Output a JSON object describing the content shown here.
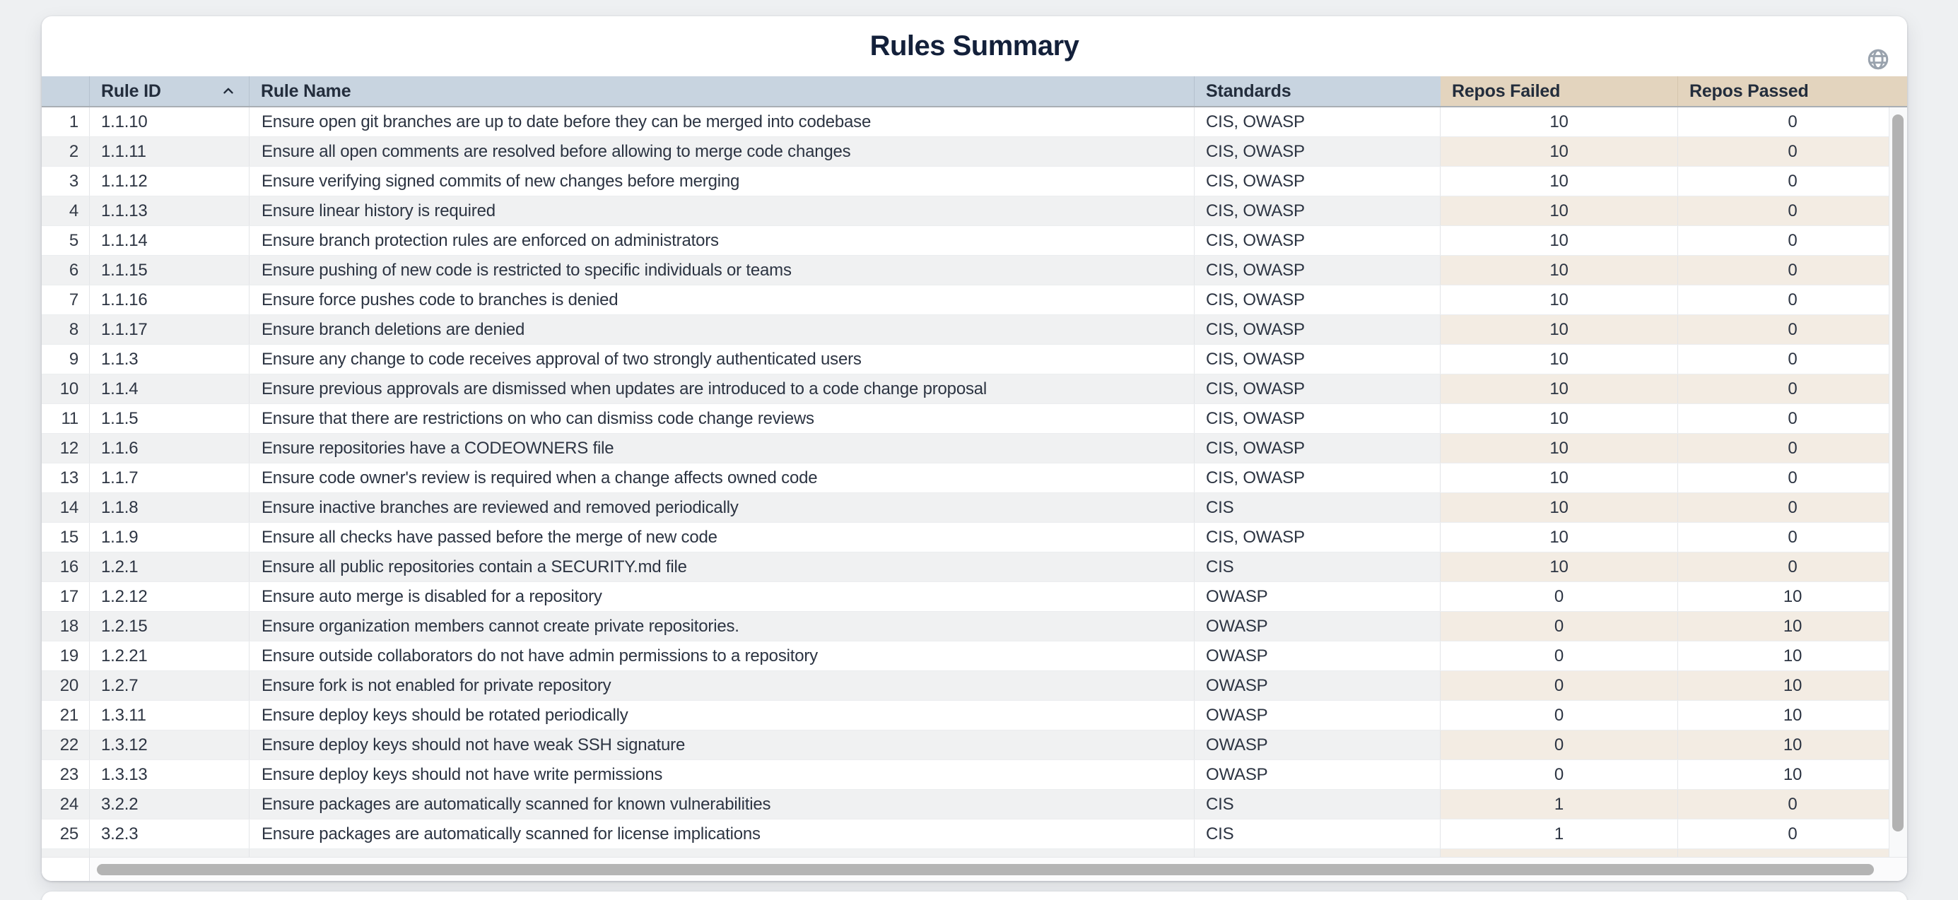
{
  "title": "Rules Summary",
  "icons": {
    "globe": "globe-icon",
    "sort_ascending": "chevron-up-icon"
  },
  "colors": {
    "header_blue": "#c8d4e0",
    "header_tan": "#e3d4be",
    "row_even_gray": "#f0f1f2",
    "row_even_beige": "#f3ece3",
    "title_text": "#13203a",
    "body_text": "#2c3442",
    "scrollbar_thumb": "#b4b4b4",
    "page_background": "#eef0f2"
  },
  "table": {
    "columns": [
      {
        "key": "index",
        "label": ""
      },
      {
        "key": "rule_id",
        "label": "Rule ID",
        "sorted": "ascending"
      },
      {
        "key": "rule_name",
        "label": "Rule Name"
      },
      {
        "key": "standards",
        "label": "Standards"
      },
      {
        "key": "repos_failed",
        "label": "Repos Failed"
      },
      {
        "key": "repos_passed",
        "label": "Repos Passed"
      }
    ],
    "rows": [
      {
        "index": 1,
        "rule_id": "1.1.10",
        "rule_name": "Ensure open git branches are up to date before they can be merged into codebase",
        "standards": "CIS, OWASP",
        "repos_failed": 10,
        "repos_passed": 0
      },
      {
        "index": 2,
        "rule_id": "1.1.11",
        "rule_name": "Ensure all open comments are resolved before allowing to merge code changes",
        "standards": "CIS, OWASP",
        "repos_failed": 10,
        "repos_passed": 0
      },
      {
        "index": 3,
        "rule_id": "1.1.12",
        "rule_name": "Ensure verifying signed commits of new changes before merging",
        "standards": "CIS, OWASP",
        "repos_failed": 10,
        "repos_passed": 0
      },
      {
        "index": 4,
        "rule_id": "1.1.13",
        "rule_name": "Ensure linear history is required",
        "standards": "CIS, OWASP",
        "repos_failed": 10,
        "repos_passed": 0
      },
      {
        "index": 5,
        "rule_id": "1.1.14",
        "rule_name": "Ensure branch protection rules are enforced on administrators",
        "standards": "CIS, OWASP",
        "repos_failed": 10,
        "repos_passed": 0
      },
      {
        "index": 6,
        "rule_id": "1.1.15",
        "rule_name": "Ensure pushing of new code is restricted to specific individuals or teams",
        "standards": "CIS, OWASP",
        "repos_failed": 10,
        "repos_passed": 0
      },
      {
        "index": 7,
        "rule_id": "1.1.16",
        "rule_name": "Ensure force pushes code to branches is denied",
        "standards": "CIS, OWASP",
        "repos_failed": 10,
        "repos_passed": 0
      },
      {
        "index": 8,
        "rule_id": "1.1.17",
        "rule_name": "Ensure branch deletions are denied",
        "standards": "CIS, OWASP",
        "repos_failed": 10,
        "repos_passed": 0
      },
      {
        "index": 9,
        "rule_id": "1.1.3",
        "rule_name": "Ensure any change to code receives approval of two strongly authenticated users",
        "standards": "CIS, OWASP",
        "repos_failed": 10,
        "repos_passed": 0
      },
      {
        "index": 10,
        "rule_id": "1.1.4",
        "rule_name": "Ensure previous approvals are dismissed when updates are introduced to a code change proposal",
        "standards": "CIS, OWASP",
        "repos_failed": 10,
        "repos_passed": 0
      },
      {
        "index": 11,
        "rule_id": "1.1.5",
        "rule_name": "Ensure that there are restrictions on who can dismiss code change reviews",
        "standards": "CIS, OWASP",
        "repos_failed": 10,
        "repos_passed": 0
      },
      {
        "index": 12,
        "rule_id": "1.1.6",
        "rule_name": "Ensure repositories have a CODEOWNERS file",
        "standards": "CIS, OWASP",
        "repos_failed": 10,
        "repos_passed": 0
      },
      {
        "index": 13,
        "rule_id": "1.1.7",
        "rule_name": "Ensure code owner's review is required when a change affects owned code",
        "standards": "CIS, OWASP",
        "repos_failed": 10,
        "repos_passed": 0
      },
      {
        "index": 14,
        "rule_id": "1.1.8",
        "rule_name": "Ensure inactive branches are reviewed and removed periodically",
        "standards": "CIS",
        "repos_failed": 10,
        "repos_passed": 0
      },
      {
        "index": 15,
        "rule_id": "1.1.9",
        "rule_name": "Ensure all checks have passed before the merge of new code",
        "standards": "CIS, OWASP",
        "repos_failed": 10,
        "repos_passed": 0
      },
      {
        "index": 16,
        "rule_id": "1.2.1",
        "rule_name": "Ensure all public repositories contain a SECURITY.md file",
        "standards": "CIS",
        "repos_failed": 10,
        "repos_passed": 0
      },
      {
        "index": 17,
        "rule_id": "1.2.12",
        "rule_name": "Ensure auto merge is disabled for a repository",
        "standards": "OWASP",
        "repos_failed": 0,
        "repos_passed": 10
      },
      {
        "index": 18,
        "rule_id": "1.2.15",
        "rule_name": "Ensure organization members cannot create private repositories.",
        "standards": "OWASP",
        "repos_failed": 0,
        "repos_passed": 10
      },
      {
        "index": 19,
        "rule_id": "1.2.21",
        "rule_name": "Ensure outside collaborators do not have admin permissions to a repository",
        "standards": "OWASP",
        "repos_failed": 0,
        "repos_passed": 10
      },
      {
        "index": 20,
        "rule_id": "1.2.7",
        "rule_name": "Ensure fork is not enabled for private repository",
        "standards": "OWASP",
        "repos_failed": 0,
        "repos_passed": 10
      },
      {
        "index": 21,
        "rule_id": "1.3.11",
        "rule_name": "Ensure deploy keys should be rotated periodically",
        "standards": "OWASP",
        "repos_failed": 0,
        "repos_passed": 10
      },
      {
        "index": 22,
        "rule_id": "1.3.12",
        "rule_name": "Ensure deploy keys should not have weak SSH signature",
        "standards": "OWASP",
        "repos_failed": 0,
        "repos_passed": 10
      },
      {
        "index": 23,
        "rule_id": "1.3.13",
        "rule_name": "Ensure deploy keys should not have write permissions",
        "standards": "OWASP",
        "repos_failed": 0,
        "repos_passed": 10
      },
      {
        "index": 24,
        "rule_id": "3.2.2",
        "rule_name": "Ensure packages are automatically scanned for known vulnerabilities",
        "standards": "CIS",
        "repos_failed": 1,
        "repos_passed": 0
      },
      {
        "index": 25,
        "rule_id": "3.2.3",
        "rule_name": "Ensure packages are automatically scanned for license implications",
        "standards": "CIS",
        "repos_failed": 1,
        "repos_passed": 0
      }
    ]
  }
}
